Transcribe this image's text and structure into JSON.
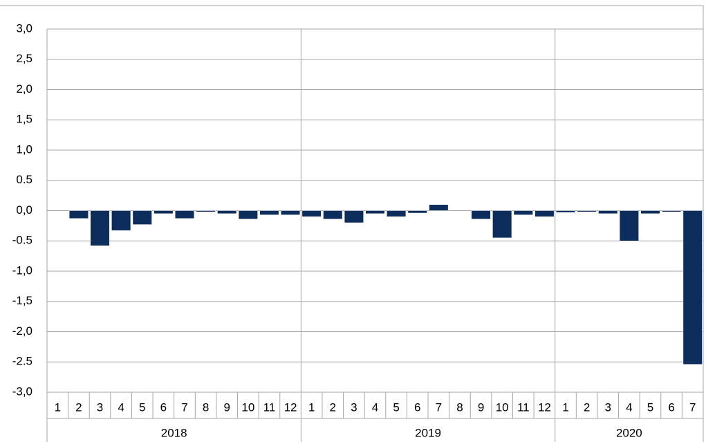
{
  "chart_data": {
    "type": "bar",
    "color": "#0d2d5c",
    "grid": true,
    "ylim": [
      -3,
      3
    ],
    "yticks": [
      {
        "value": -3,
        "label": "-3,0"
      },
      {
        "value": -2.5,
        "label": "-2.5"
      },
      {
        "value": -2,
        "label": "-2,0"
      },
      {
        "value": -1.5,
        "label": "-1,5"
      },
      {
        "value": -1,
        "label": "-1,0"
      },
      {
        "value": -0.5,
        "label": "-0.5"
      },
      {
        "value": 0,
        "label": "0,0"
      },
      {
        "value": 0.5,
        "label": "0.5"
      },
      {
        "value": 1,
        "label": "1,0"
      },
      {
        "value": 1.5,
        "label": "1,5"
      },
      {
        "value": 2,
        "label": "2,0"
      },
      {
        "value": 2.5,
        "label": "2,5"
      },
      {
        "value": 3,
        "label": "3,0"
      }
    ],
    "groups": [
      {
        "label": "2018",
        "categories": [
          "1",
          "2",
          "3",
          "4",
          "5",
          "6",
          "7",
          "8",
          "9",
          "10",
          "11",
          "12"
        ],
        "values": [
          0,
          -0.13,
          -0.58,
          -0.33,
          -0.23,
          -0.05,
          -0.13,
          -0.02,
          -0.05,
          -0.14,
          -0.07,
          -0.07
        ]
      },
      {
        "label": "2019",
        "categories": [
          "1",
          "2",
          "3",
          "4",
          "5",
          "6",
          "7",
          "8",
          "9",
          "10",
          "11",
          "12"
        ],
        "values": [
          -0.1,
          -0.14,
          -0.2,
          -0.05,
          -0.1,
          -0.04,
          0.1,
          0,
          -0.14,
          -0.45,
          -0.07,
          -0.1
        ]
      },
      {
        "label": "2020",
        "categories": [
          "1",
          "2",
          "3",
          "4",
          "5",
          "6",
          "7"
        ],
        "values": [
          -0.03,
          -0.02,
          -0.05,
          -0.5,
          -0.05,
          -0.02,
          -2.54
        ]
      }
    ]
  }
}
